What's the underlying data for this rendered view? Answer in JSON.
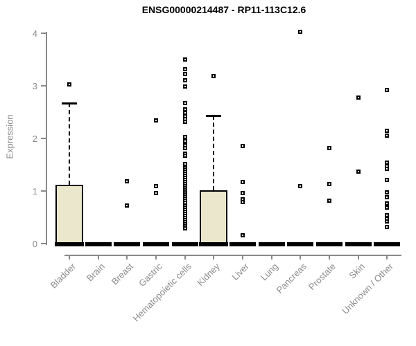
{
  "title": "ENSG00000214487 - RP11-113C12.6",
  "colors": {
    "box_fill": "#ebe7cc",
    "box_border": "#000000",
    "axis": "#8a8a8a",
    "tick_label": "#8a8a8a",
    "title": "#000000",
    "point_fill": "#ffffff"
  },
  "chart_data": {
    "type": "boxplot",
    "title": "ENSG00000214487 - RP11-113C12.6",
    "xlabel": "",
    "ylabel": "Expression",
    "ylim": [
      0,
      4
    ],
    "yticks": [
      0,
      1,
      2,
      3,
      4
    ],
    "grid": false,
    "legend": "none",
    "categories": [
      "Bladder",
      "Brain",
      "Breast",
      "Gastric",
      "Hematopoietic cells",
      "Kidney",
      "Liver",
      "Lung",
      "Pancreas",
      "Prostate",
      "Skin",
      "Unknown / Other"
    ],
    "series": [
      {
        "name": "Bladder",
        "q1": 0,
        "median": 0,
        "q3": 1.12,
        "whisker_low": 0,
        "whisker_high": 2.67,
        "outliers": [
          3.03
        ]
      },
      {
        "name": "Brain",
        "q1": 0,
        "median": 0,
        "q3": 0,
        "whisker_low": 0,
        "whisker_high": 0,
        "outliers": []
      },
      {
        "name": "Breast",
        "q1": 0,
        "median": 0,
        "q3": 0,
        "whisker_low": 0,
        "whisker_high": 0,
        "outliers": [
          1.18,
          0.73
        ]
      },
      {
        "name": "Gastric",
        "q1": 0,
        "median": 0,
        "q3": 0,
        "whisker_low": 0,
        "whisker_high": 0,
        "outliers": [
          2.34,
          1.09,
          0.96
        ]
      },
      {
        "name": "Hematopoietic cells",
        "q1": 0,
        "median": 0,
        "q3": 0,
        "whisker_low": 0,
        "whisker_high": 0,
        "outliers": [
          3.5,
          3.31,
          3.23,
          3.1,
          2.99,
          2.67,
          2.55,
          2.49,
          2.42,
          2.37,
          2.31,
          2.02,
          1.95,
          1.87,
          1.81,
          1.71,
          1.67,
          1.51,
          1.45,
          1.41,
          1.37,
          1.33,
          1.29,
          1.25,
          1.21,
          1.17,
          1.13,
          1.09,
          1.05,
          1.01,
          0.97,
          0.93,
          0.89,
          0.85,
          0.81,
          0.77,
          0.73,
          0.69,
          0.65,
          0.61,
          0.57,
          0.53,
          0.49,
          0.45,
          0.41,
          0.37,
          0.33,
          0.29
        ]
      },
      {
        "name": "Kidney",
        "q1": 0,
        "median": 0,
        "q3": 1.01,
        "whisker_low": 0,
        "whisker_high": 2.44,
        "outliers": [
          3.18
        ]
      },
      {
        "name": "Liver",
        "q1": 0,
        "median": 0,
        "q3": 0,
        "whisker_low": 0,
        "whisker_high": 0,
        "outliers": [
          1.86,
          1.17,
          0.96,
          0.84,
          0.79,
          0.16
        ]
      },
      {
        "name": "Lung",
        "q1": 0,
        "median": 0,
        "q3": 0,
        "whisker_low": 0,
        "whisker_high": 0,
        "outliers": []
      },
      {
        "name": "Pancreas",
        "q1": 0,
        "median": 0,
        "q3": 0,
        "whisker_low": 0,
        "whisker_high": 0,
        "outliers": [
          4.02,
          1.09
        ]
      },
      {
        "name": "Prostate",
        "q1": 0,
        "median": 0,
        "q3": 0,
        "whisker_low": 0,
        "whisker_high": 0,
        "outliers": [
          1.82,
          1.13,
          0.82
        ]
      },
      {
        "name": "Skin",
        "q1": 0,
        "median": 0,
        "q3": 0,
        "whisker_low": 0,
        "whisker_high": 0,
        "outliers": [
          2.78,
          1.37
        ]
      },
      {
        "name": "Unknown / Other",
        "q1": 0,
        "median": 0,
        "q3": 0,
        "whisker_low": 0,
        "whisker_high": 0,
        "outliers": [
          2.92,
          2.15,
          2.05,
          1.54,
          1.48,
          1.42,
          1.21,
          0.97,
          0.88,
          0.76,
          0.69,
          0.54,
          0.47,
          0.42,
          0.32
        ]
      }
    ]
  }
}
